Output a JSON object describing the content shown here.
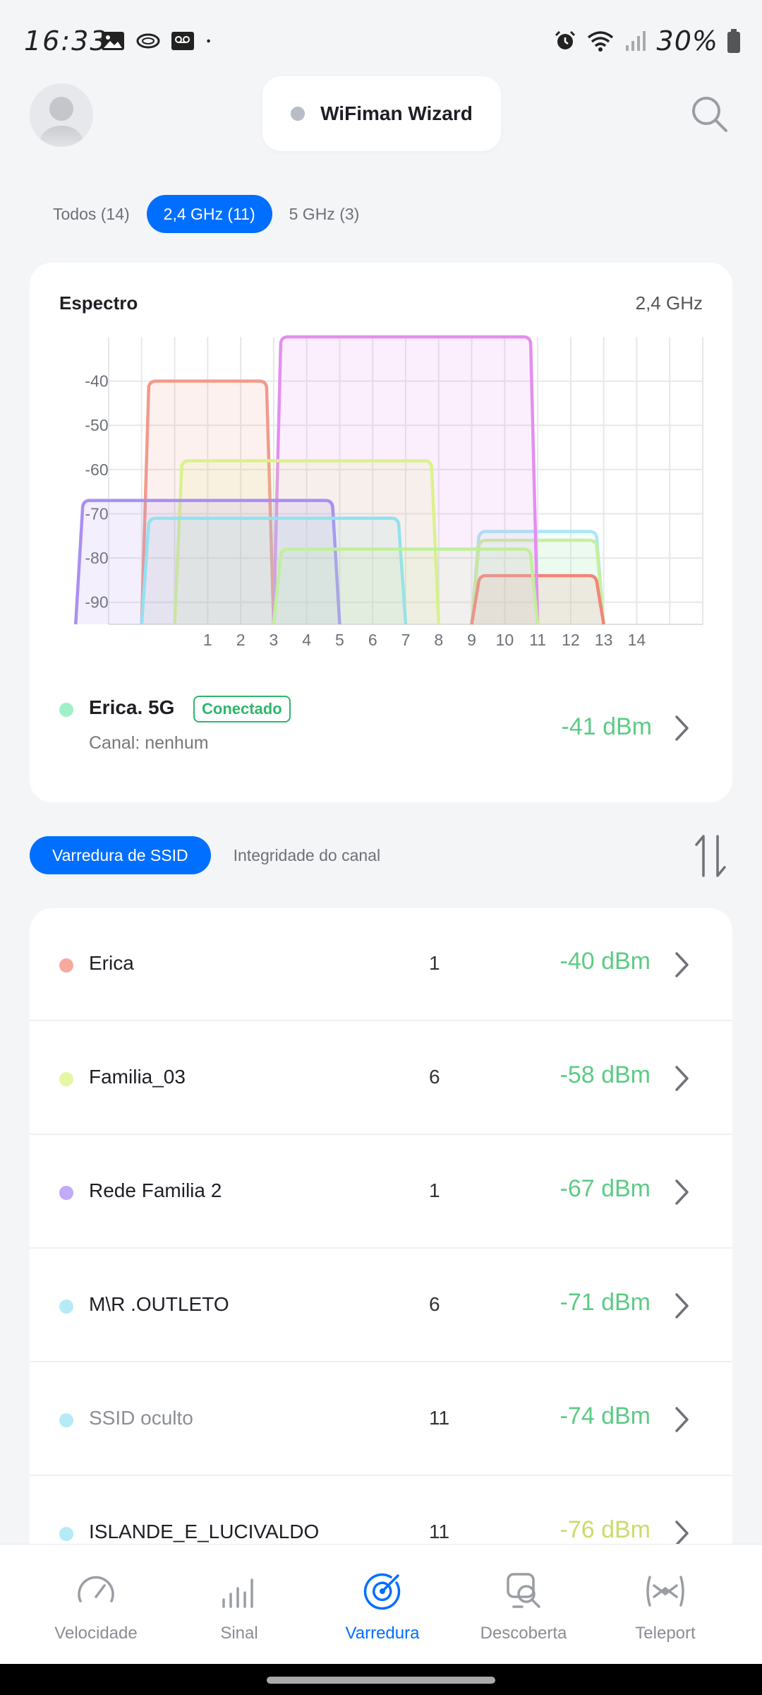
{
  "status_bar": {
    "time": "16:33",
    "battery": "30%"
  },
  "header": {
    "title": "WiFiman Wizard"
  },
  "band_tabs": [
    {
      "label": "Todos (14)",
      "active": false
    },
    {
      "label": "2,4 GHz (11)",
      "active": true
    },
    {
      "label": "5 GHz (3)",
      "active": false
    }
  ],
  "spectrum": {
    "title": "Espectro",
    "band": "2,4 GHz",
    "connected": {
      "name": "Erica. 5G",
      "badge": "Conectado",
      "channel": "Canal: nenhum",
      "signal": "-41 dBm",
      "dot_color": "#9ff0c8"
    }
  },
  "chart_data": {
    "type": "area",
    "xlabel": "",
    "ylabel": "",
    "x_ticks": [
      "1",
      "2",
      "3",
      "4",
      "5",
      "6",
      "7",
      "8",
      "9",
      "10",
      "11",
      "12",
      "13",
      "14"
    ],
    "y_ticks": [
      "-40",
      "-50",
      "-60",
      "-70",
      "-80",
      "-90"
    ],
    "ylim": [
      -95,
      -30
    ],
    "xlim": [
      -2,
      16
    ],
    "grid": true,
    "series": [
      {
        "center": 1,
        "width": 4,
        "level": -40,
        "color": "#f29a8c"
      },
      {
        "center": 11,
        "width": 4,
        "level": -74,
        "color": "#a9e8f5"
      },
      {
        "center": 11,
        "width": 4,
        "level": -76,
        "color": "#c7f09a"
      },
      {
        "center": 11,
        "width": 4,
        "level": -84,
        "color": "#f1857a"
      },
      {
        "center": 7,
        "width": 8,
        "level": -30,
        "color": "#e48ef0"
      },
      {
        "center": 4,
        "width": 8,
        "level": -58,
        "color": "#dbf28a"
      },
      {
        "center": 1,
        "width": 8,
        "level": -67,
        "color": "#a98ff2"
      },
      {
        "center": 3,
        "width": 8,
        "level": -71,
        "color": "#92e1f2"
      },
      {
        "center": 7,
        "width": 8,
        "level": -78,
        "color": "#bff09a"
      }
    ]
  },
  "scan_tabs": [
    {
      "label": "Varredura de SSID",
      "active": true
    },
    {
      "label": "Integridade do canal",
      "active": false
    }
  ],
  "networks": [
    {
      "name": "Erica",
      "channel": "1",
      "signal": "-40 dBm",
      "color": "#f6a99d"
    },
    {
      "name": "Familia_03",
      "channel": "6",
      "signal": "-58 dBm",
      "color": "#e6f7a3"
    },
    {
      "name": "Rede Familia 2",
      "channel": "1",
      "signal": "-67 dBm",
      "color": "#c1aaf6"
    },
    {
      "name": "M\\R .OUTLETO",
      "channel": "6",
      "signal": "-71 dBm",
      "color": "#b5eaf7"
    },
    {
      "name": "SSID oculto",
      "channel": "11",
      "signal": "-74 dBm",
      "color": "#b5eaf7"
    },
    {
      "name": "ISLANDE_E_LUCIVALDO",
      "channel": "11",
      "signal": "-76 dBm",
      "color": "#b5eaf7"
    }
  ],
  "bottom_nav": [
    {
      "label": "Velocidade",
      "icon": "speedometer-icon",
      "active": false
    },
    {
      "label": "Sinal",
      "icon": "signal-bars-icon",
      "active": false
    },
    {
      "label": "Varredura",
      "icon": "radar-icon",
      "active": true
    },
    {
      "label": "Descoberta",
      "icon": "device-search-icon",
      "active": false
    },
    {
      "label": "Teleport",
      "icon": "teleport-icon",
      "active": false
    }
  ]
}
